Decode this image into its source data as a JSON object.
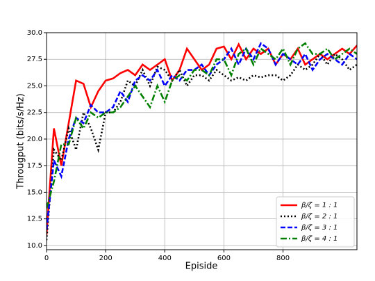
{
  "chart_data": {
    "type": "line",
    "xlabel": "Episide",
    "ylabel": "Througput (bits/s/Hz)",
    "x": [
      0,
      25,
      50,
      75,
      100,
      125,
      150,
      175,
      200,
      225,
      250,
      275,
      300,
      325,
      350,
      375,
      400,
      425,
      450,
      475,
      500,
      525,
      550,
      575,
      600,
      625,
      650,
      675,
      700,
      725,
      750,
      775,
      800,
      825,
      850,
      875,
      900,
      925,
      950,
      975,
      1000,
      1025,
      1050
    ],
    "series": [
      {
        "name": "β/ζ = 1 : 1",
        "color": "#ff0000",
        "style": "solid",
        "values": [
          11,
          21,
          17.5,
          21.5,
          25.5,
          25.2,
          23,
          24.5,
          25.5,
          25.7,
          26.2,
          26.5,
          26,
          27,
          26.5,
          27,
          27.5,
          25.5,
          26.5,
          28.5,
          27.5,
          26.5,
          27,
          28.5,
          28.7,
          27.5,
          28.9,
          27.5,
          28.5,
          28,
          28.5,
          27,
          28,
          27.5,
          28.5,
          27,
          27.5,
          28,
          27.5,
          28,
          28.5,
          28,
          28.8
        ]
      },
      {
        "name": "β/ζ = 2 : 1",
        "color": "#000000",
        "style": "dotted",
        "values": [
          10.5,
          19,
          18,
          21,
          19,
          22.5,
          21,
          19,
          22.5,
          22.5,
          23.5,
          25.5,
          25,
          26.5,
          25,
          26.8,
          26.5,
          25.5,
          26.5,
          25,
          26,
          26,
          25.5,
          26.5,
          26,
          25.5,
          25.8,
          25.5,
          26,
          25.8,
          26,
          26,
          25.5,
          26,
          27,
          26.5,
          27,
          28,
          27,
          28,
          27.5,
          26.5,
          27
        ]
      },
      {
        "name": "β/ζ = 3 : 1",
        "color": "#0000ff",
        "style": "dashed",
        "values": [
          11.5,
          18,
          16.5,
          20,
          22,
          21.5,
          23.2,
          22.5,
          22.5,
          23,
          24.5,
          23.5,
          25.5,
          26,
          25.5,
          26.5,
          25,
          26,
          25.5,
          26.5,
          26.5,
          27,
          26,
          27,
          27.5,
          28.5,
          27,
          28.5,
          27.5,
          29,
          28.5,
          27,
          28,
          27.5,
          27,
          28,
          26.5,
          27.5,
          28,
          27.5,
          27,
          28,
          27.5
        ]
      },
      {
        "name": "β/ζ = 4 : 1",
        "color": "#008000",
        "style": "dashdot",
        "values": [
          13.5,
          16,
          19.5,
          19.5,
          22,
          21,
          22.5,
          22,
          22.5,
          22.5,
          23,
          24,
          25,
          24,
          23,
          25,
          23.5,
          25.5,
          26,
          25.5,
          26.5,
          26.5,
          26,
          27.5,
          27.5,
          26,
          28,
          28.5,
          27,
          28.5,
          28,
          27.5,
          28.5,
          27,
          28.5,
          29,
          28,
          28,
          28.5,
          27.5,
          28,
          28.5,
          28
        ]
      }
    ],
    "xlim": [
      0,
      1050
    ],
    "xticks": [
      0,
      200,
      400,
      600,
      800
    ],
    "ylim": [
      9.6,
      30
    ],
    "yticks": [
      {
        "value": 10,
        "label": "10.0"
      },
      12.5,
      {
        "value": 15,
        "label": "15.0"
      },
      17.5,
      {
        "value": 20,
        "label": "20.0"
      },
      22.5,
      {
        "value": 25,
        "label": "25.0"
      },
      27.5,
      {
        "value": 30,
        "label": "30.0"
      }
    ],
    "grid": true,
    "legend": "lower right"
  }
}
